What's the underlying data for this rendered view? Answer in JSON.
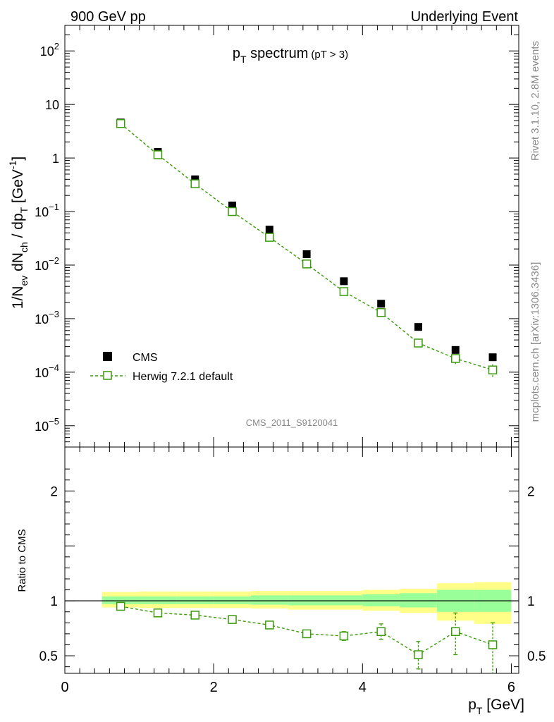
{
  "header": {
    "left": "900 GeV pp",
    "right": "Underlying Event"
  },
  "side_labels": {
    "rivet": "Rivet 3.1.10,  2.8M events",
    "mcplots": "mcplots.cern.ch [arXiv:1306.3436]"
  },
  "analysis_id": "CMS_2011_S9120041",
  "chart_data": [
    {
      "type": "scatter",
      "panel": "main",
      "title_main": "p",
      "title_sub": "T",
      "title_rest": " spectrum",
      "title_cut": "(pT >  3)",
      "ylabel": {
        "p1": "1/N",
        "s1": "ev",
        "p2": " dN",
        "s2": "ch",
        "p3": " / dp",
        "s3": "T",
        "p4": " [GeV",
        "sup": "-1",
        "p5": "]"
      },
      "y_scale": "log",
      "ylim": [
        4e-06,
        300
      ],
      "xlim": [
        0,
        6.1
      ],
      "y_ticks": [
        {
          "v": 1e-05,
          "base": "10",
          "exp": "−5"
        },
        {
          "v": 0.0001,
          "base": "10",
          "exp": "−4"
        },
        {
          "v": 0.001,
          "base": "10",
          "exp": "−3"
        },
        {
          "v": 0.01,
          "base": "10",
          "exp": "−2"
        },
        {
          "v": 0.1,
          "base": "10",
          "exp": "−1"
        },
        {
          "v": 1,
          "base": "1",
          "exp": ""
        },
        {
          "v": 10,
          "base": "10",
          "exp": ""
        },
        {
          "v": 100,
          "base": "10",
          "exp": "2"
        }
      ],
      "legend_placement": "bottom-left",
      "series": [
        {
          "name": "CMS",
          "color": "#000000",
          "marker": "filled-square",
          "x": [
            0.75,
            1.25,
            1.75,
            2.25,
            2.75,
            3.25,
            3.75,
            4.25,
            4.75,
            5.25,
            5.75
          ],
          "y": [
            4.6,
            1.3,
            0.4,
            0.13,
            0.046,
            0.016,
            0.005,
            0.0019,
            0.0007,
            0.00026,
            0.00019
          ]
        },
        {
          "name": "Herwig 7.2.1 default",
          "color": "#3a9a0a",
          "marker": "open-square",
          "line": "dashed",
          "x": [
            0.75,
            1.25,
            1.75,
            2.25,
            2.75,
            3.25,
            3.75,
            4.25,
            4.75,
            5.25,
            5.75
          ],
          "y": [
            4.4,
            1.15,
            0.33,
            0.1,
            0.033,
            0.0105,
            0.0032,
            0.0013,
            0.00035,
            0.00018,
            0.00011
          ],
          "err_hi": [
            0,
            0,
            0,
            0,
            0,
            0,
            0,
            0,
            3e-05,
            3e-05,
            3e-05
          ],
          "err_lo": [
            0,
            0,
            0,
            0,
            0,
            0,
            0,
            0,
            3e-05,
            4e-05,
            3e-05
          ]
        }
      ]
    },
    {
      "type": "line",
      "panel": "ratio",
      "ylabel": "Ratio to CMS",
      "xlabel_main": "p",
      "xlabel_sub": "T",
      "xlabel_rest": " [GeV]",
      "xlim": [
        0,
        6.1
      ],
      "ylim": [
        0.34,
        2.4
      ],
      "x_ticks": [
        0,
        2,
        4,
        6
      ],
      "y_ticks": [
        0.5,
        1,
        2
      ],
      "reference": 1,
      "bands": {
        "x_edges": [
          0.5,
          1.0,
          1.5,
          2.0,
          2.5,
          3.0,
          3.5,
          4.0,
          4.5,
          5.0,
          5.5,
          6.0
        ],
        "yellow_color": "#ffff88",
        "green_color": "#99ff99",
        "yellow_hi": [
          1.08,
          1.085,
          1.085,
          1.085,
          1.09,
          1.09,
          1.09,
          1.1,
          1.11,
          1.16,
          1.17
        ],
        "yellow_lo": [
          0.94,
          0.935,
          0.935,
          0.935,
          0.93,
          0.92,
          0.92,
          0.91,
          0.89,
          0.82,
          0.79
        ],
        "green_hi": [
          1.04,
          1.04,
          1.04,
          1.04,
          1.05,
          1.05,
          1.05,
          1.06,
          1.07,
          1.1,
          1.1
        ],
        "green_lo": [
          0.97,
          0.97,
          0.97,
          0.97,
          0.965,
          0.96,
          0.96,
          0.95,
          0.94,
          0.9,
          0.9
        ]
      },
      "series": [
        {
          "name": "Herwig 7.2.1 default",
          "color": "#3a9a0a",
          "x": [
            0.75,
            1.25,
            1.75,
            2.25,
            2.75,
            3.25,
            3.75,
            4.25,
            4.75,
            5.25,
            5.75
          ],
          "y": [
            0.95,
            0.89,
            0.87,
            0.83,
            0.78,
            0.7,
            0.68,
            0.72,
            0.51,
            0.72,
            0.6
          ],
          "err_hi": [
            0,
            0,
            0,
            0,
            0,
            0,
            0.04,
            0.07,
            0.12,
            0.17,
            0.2
          ],
          "err_lo": [
            0,
            0,
            0,
            0,
            0,
            0,
            0.04,
            0.07,
            0.13,
            0.21,
            0.26
          ]
        }
      ]
    }
  ]
}
